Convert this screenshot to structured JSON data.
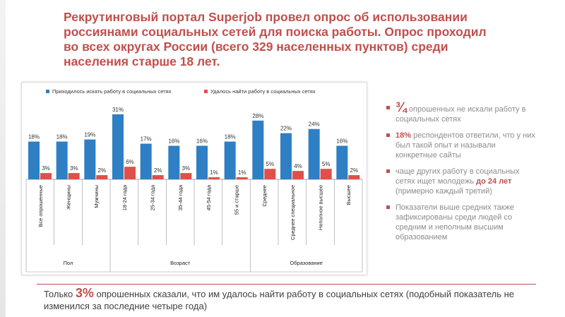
{
  "title": "Рекрутинговый портал Superjob провел опрос об использовании россиянами социальных сетей для поиска работы. Опрос проходил во всех округах России (всего 329 населенных пунктов) среди населения старше 18 лет.",
  "colors": {
    "accent": "#c0504d",
    "series1": "#2e7fc4",
    "series2": "#e0504a"
  },
  "sidebar": {
    "item1": {
      "value": "¾",
      "text": " опрошенных не искали работу в социальных сетях"
    },
    "item2": {
      "value": "18%",
      "text": " респондентов ответили, что у них был такой опыт и называли конкретные сайты"
    },
    "item3": {
      "pre": "чаще других работу в социальных сетях ищет молодежь ",
      "value": "до 24 лет",
      "post": " (примерно каждый третий)"
    },
    "item4": {
      "text": "Показатели выше средних также зафиксированы среди людей со средним и неполным высшим образованием"
    }
  },
  "footer": {
    "pre": "Только ",
    "value": "3%",
    "post": " опрошенных сказали, что им удалось найти работу в социальных сетях (подобный показатель не изменился за последние четыре года)"
  },
  "chart_data": {
    "type": "bar",
    "categories": [
      "Все опрошенные",
      "Женщины",
      "Мужчины",
      "18-24 года",
      "25-34 года",
      "35-44 года",
      "45-54 года",
      "55 и старше",
      "Среднее",
      "Среднее специальное",
      "Неполное высшее",
      "Высшее"
    ],
    "series": [
      {
        "name": "Приходилось искать работу в социальных сетях",
        "values": [
          18,
          18,
          19,
          31,
          17,
          16,
          16,
          18,
          28,
          22,
          24,
          16
        ]
      },
      {
        "name": "Удалось найти работу в социальных сетях",
        "values": [
          3,
          3,
          2,
          6,
          2,
          3,
          1,
          1,
          5,
          4,
          5,
          2
        ]
      }
    ],
    "groups": [
      {
        "label": "Пол",
        "span": 3
      },
      {
        "label": "Возраст",
        "span": 5
      },
      {
        "label": "Образование",
        "span": 4
      }
    ],
    "ylim": [
      0,
      34
    ],
    "grid": false,
    "legend": "top-left"
  }
}
